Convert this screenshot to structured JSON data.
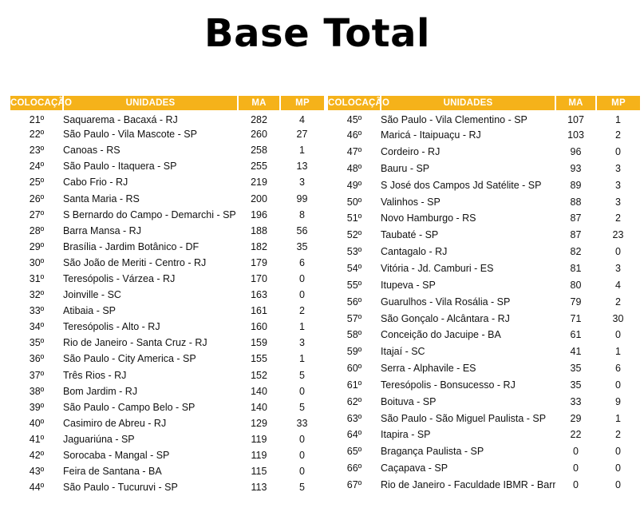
{
  "title": "Base Total",
  "headers": {
    "pos": "COLOCAÇÃO",
    "name": "UNIDADES",
    "ma": "MA",
    "mp": "MP"
  },
  "accent_color": "#F5B21A",
  "left_table": [
    {
      "pos": "21º",
      "name": "Saquarema - Bacaxá - RJ",
      "ma": "282",
      "mp": "4"
    },
    {
      "pos": "22º",
      "name": "São Paulo - Vila Mascote - SP",
      "ma": "260",
      "mp": "27"
    },
    {
      "pos": "23º",
      "name": "Canoas - RS",
      "ma": "258",
      "mp": "1"
    },
    {
      "pos": "24º",
      "name": "São Paulo - Itaquera - SP",
      "ma": "255",
      "mp": "13"
    },
    {
      "pos": "25º",
      "name": "Cabo Frio - RJ",
      "ma": "219",
      "mp": "3"
    },
    {
      "pos": "26º",
      "name": "Santa Maria - RS",
      "ma": "200",
      "mp": "99"
    },
    {
      "pos": "27º",
      "name": "S Bernardo do Campo - Demarchi - SP",
      "ma": "196",
      "mp": "8"
    },
    {
      "pos": "28º",
      "name": "Barra Mansa - RJ",
      "ma": "188",
      "mp": "56"
    },
    {
      "pos": "29º",
      "name": "Brasília - Jardim Botânico - DF",
      "ma": "182",
      "mp": "35"
    },
    {
      "pos": "30º",
      "name": "São João de Meriti - Centro - RJ",
      "ma": "179",
      "mp": "6"
    },
    {
      "pos": "31º",
      "name": "Teresópolis - Várzea - RJ",
      "ma": "170",
      "mp": "0"
    },
    {
      "pos": "32º",
      "name": "Joinville - SC",
      "ma": "163",
      "mp": "0"
    },
    {
      "pos": "33º",
      "name": "Atibaia - SP",
      "ma": "161",
      "mp": "2"
    },
    {
      "pos": "34º",
      "name": "Teresópolis - Alto - RJ",
      "ma": "160",
      "mp": "1"
    },
    {
      "pos": "35º",
      "name": "Rio de Janeiro - Santa Cruz - RJ",
      "ma": "159",
      "mp": "3"
    },
    {
      "pos": "36º",
      "name": "São Paulo - City America - SP",
      "ma": "155",
      "mp": "1"
    },
    {
      "pos": "37º",
      "name": "Três Rios - RJ",
      "ma": "152",
      "mp": "5"
    },
    {
      "pos": "38º",
      "name": "Bom Jardim - RJ",
      "ma": "140",
      "mp": "0"
    },
    {
      "pos": "39º",
      "name": "São Paulo - Campo Belo - SP",
      "ma": "140",
      "mp": "5"
    },
    {
      "pos": "40º",
      "name": "Casimiro de Abreu - RJ",
      "ma": "129",
      "mp": "33"
    },
    {
      "pos": "41º",
      "name": "Jaguariúna - SP",
      "ma": "119",
      "mp": "0"
    },
    {
      "pos": "42º",
      "name": "Sorocaba - Mangal - SP",
      "ma": "119",
      "mp": "0"
    },
    {
      "pos": "43º",
      "name": "Feira de Santana - BA",
      "ma": "115",
      "mp": "0"
    },
    {
      "pos": "44º",
      "name": "São Paulo - Tucuruvi - SP",
      "ma": "113",
      "mp": "5"
    }
  ],
  "right_table": [
    {
      "pos": "45º",
      "name": "São Paulo - Vila Clementino - SP",
      "ma": "107",
      "mp": "1"
    },
    {
      "pos": "46º",
      "name": "Maricá - Itaipuaçu - RJ",
      "ma": "103",
      "mp": "2"
    },
    {
      "pos": "47º",
      "name": "Cordeiro - RJ",
      "ma": "96",
      "mp": "0"
    },
    {
      "pos": "48º",
      "name": "Bauru - SP",
      "ma": "93",
      "mp": "3"
    },
    {
      "pos": "49º",
      "name": "S José dos Campos Jd Satélite - SP",
      "ma": "89",
      "mp": "3"
    },
    {
      "pos": "50º",
      "name": "Valinhos - SP",
      "ma": "88",
      "mp": "3"
    },
    {
      "pos": "51º",
      "name": "Novo Hamburgo - RS",
      "ma": "87",
      "mp": "2"
    },
    {
      "pos": "52º",
      "name": "Taubaté - SP",
      "ma": "87",
      "mp": "23"
    },
    {
      "pos": "53º",
      "name": "Cantagalo - RJ",
      "ma": "82",
      "mp": "0"
    },
    {
      "pos": "54º",
      "name": "Vitória - Jd. Camburi - ES",
      "ma": "81",
      "mp": "3"
    },
    {
      "pos": "55º",
      "name": "Itupeva - SP",
      "ma": "80",
      "mp": "4"
    },
    {
      "pos": "56º",
      "name": "Guarulhos - Vila Rosália - SP",
      "ma": "79",
      "mp": "2"
    },
    {
      "pos": "57º",
      "name": "São Gonçalo - Alcântara - RJ",
      "ma": "71",
      "mp": "30"
    },
    {
      "pos": "58º",
      "name": "Conceição do Jacuipe - BA",
      "ma": "61",
      "mp": "0"
    },
    {
      "pos": "59º",
      "name": "Itajaí - SC",
      "ma": "41",
      "mp": "1"
    },
    {
      "pos": "60º",
      "name": "Serra - Alphavile - ES",
      "ma": "35",
      "mp": "6"
    },
    {
      "pos": "61º",
      "name": "Teresópolis - Bonsucesso - RJ",
      "ma": "35",
      "mp": "0"
    },
    {
      "pos": "62º",
      "name": "Boituva - SP",
      "ma": "33",
      "mp": "9"
    },
    {
      "pos": "63º",
      "name": "São Paulo - São Miguel Paulista - SP",
      "ma": "29",
      "mp": "1"
    },
    {
      "pos": "64º",
      "name": "Itapira - SP",
      "ma": "22",
      "mp": "2"
    },
    {
      "pos": "65º",
      "name": "Bragança Paulista - SP",
      "ma": "0",
      "mp": "0"
    },
    {
      "pos": "66º",
      "name": "Caçapava - SP",
      "ma": "0",
      "mp": "0"
    },
    {
      "pos": "67º",
      "name": "Rio de Janeiro - Faculdade IBMR - Barra - RJ",
      "ma": "0",
      "mp": "0"
    }
  ]
}
